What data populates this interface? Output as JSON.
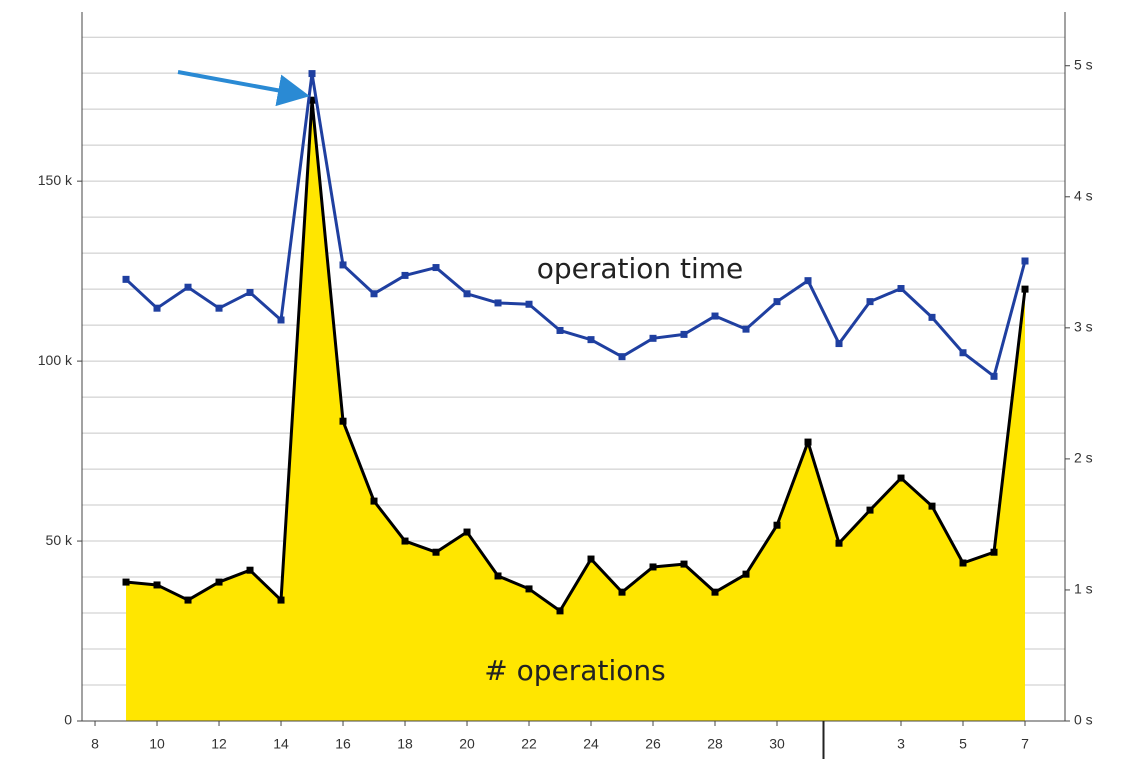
{
  "chart_data": {
    "type": "area",
    "x": [
      9,
      10,
      11,
      12,
      13,
      14,
      15,
      16,
      17,
      18,
      19,
      20,
      21,
      22,
      23,
      24,
      25,
      26,
      27,
      28,
      29,
      30,
      31,
      32,
      33,
      34,
      35,
      36,
      37,
      38
    ],
    "xlim": [
      7.58,
      39.29
    ],
    "xticks": [
      8,
      10,
      12,
      14,
      16,
      18,
      20,
      22,
      24,
      26,
      28,
      30,
      {
        "value": 34,
        "label": "3"
      },
      {
        "value": 36,
        "label": "5"
      },
      {
        "value": 38,
        "label": "7"
      }
    ],
    "month_divider": 31.5,
    "ylim": [
      0,
      197000
    ],
    "yticks": [
      0,
      {
        "value": 50000,
        "label": "50 k"
      },
      {
        "value": 100000,
        "label": "100 k"
      },
      {
        "value": 150000,
        "label": "150 k"
      }
    ],
    "ygrid": [
      10000,
      20000,
      30000,
      40000,
      50000,
      60000,
      70000,
      80000,
      90000,
      100000,
      110000,
      120000,
      130000,
      140000,
      150000,
      160000,
      170000,
      180000,
      190000
    ],
    "y2lim": [
      0,
      5.41
    ],
    "y2ticks": [
      {
        "value": 0,
        "label": "0 s"
      },
      {
        "value": 1,
        "label": "1 s"
      },
      {
        "value": 2,
        "label": "2 s"
      },
      {
        "value": 3,
        "label": "3 s"
      },
      {
        "value": 4,
        "label": "4 s"
      },
      {
        "value": 5,
        "label": "5 s"
      }
    ],
    "grid": true,
    "series": [
      {
        "name": "# operations",
        "type": "area",
        "color": "#ffe600",
        "line_color": "#000000",
        "values": [
          38600,
          37800,
          33600,
          38600,
          41900,
          33600,
          172500,
          83300,
          61100,
          50000,
          46900,
          52500,
          40300,
          36700,
          30600,
          45000,
          35800,
          42800,
          43600,
          35800,
          40800,
          54400,
          77500,
          49400,
          58600,
          67500,
          59700,
          43900,
          46900,
          120000
        ]
      },
      {
        "name": "operation time",
        "type": "line",
        "axis": "y2",
        "color": "#1f3fa0",
        "values": [
          3.37,
          3.15,
          3.31,
          3.15,
          3.27,
          3.06,
          4.94,
          3.48,
          3.26,
          3.4,
          3.46,
          3.26,
          3.19,
          3.18,
          2.98,
          2.91,
          2.78,
          2.92,
          2.95,
          3.09,
          2.99,
          3.2,
          3.36,
          2.88,
          3.2,
          3.3,
          3.08,
          2.81,
          2.63,
          3.51
        ]
      }
    ]
  }
}
